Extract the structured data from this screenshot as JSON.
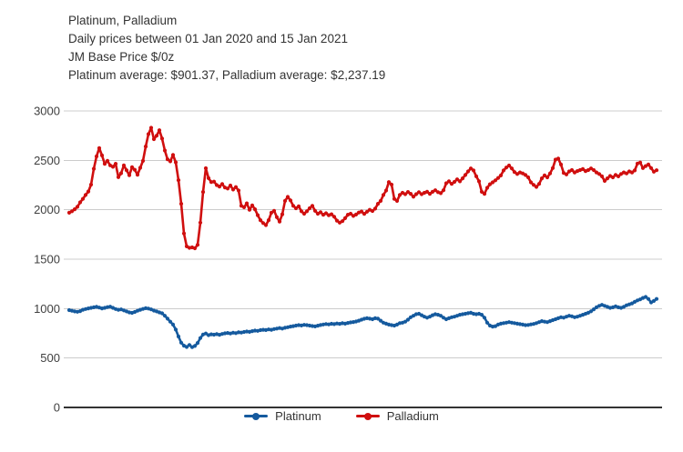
{
  "header": {
    "line1": "Platinum, Palladium",
    "line2": "Daily prices between 01 Jan 2020 and 15 Jan 2021",
    "line3": "JM Base Price $/0z",
    "line4": "Platinum average: $901.37, Palladium average: $2,237.19"
  },
  "colors": {
    "platinum": "#155a9e",
    "palladium": "#d00f0f",
    "grid": "#cccccc",
    "axis": "#333333",
    "text": "#333333"
  },
  "chart_data": {
    "type": "line",
    "title": "Platinum, Palladium",
    "subtitle": "Daily prices between 01 Jan 2020 and 15 Jan 2021",
    "units_label": "JM Base Price $/0z",
    "averages_label": "Platinum average: $901.37, Palladium average: $2,237.19",
    "averages": {
      "Platinum": 901.37,
      "Palladium": 2237.19
    },
    "x_range": [
      "01 Jan 2020",
      "15 Jan 2021"
    ],
    "x_axis_labels": "none",
    "ylim": [
      0,
      3000
    ],
    "yticks": [
      0,
      500,
      1000,
      1500,
      2000,
      2500,
      3000
    ],
    "grid": "horizontal",
    "legend_position": "bottom-center",
    "marker": "circle",
    "series": [
      {
        "name": "Platinum",
        "color": "#155a9e",
        "values": [
          985,
          978,
          972,
          968,
          975,
          988,
          996,
          1002,
          1008,
          1013,
          1018,
          1010,
          1002,
          1008,
          1015,
          1020,
          1008,
          996,
          988,
          992,
          982,
          972,
          962,
          957,
          966,
          978,
          988,
          997,
          1004,
          1000,
          992,
          980,
          972,
          962,
          952,
          928,
          898,
          868,
          838,
          788,
          718,
          655,
          625,
          612,
          632,
          610,
          622,
          652,
          702,
          738,
          748,
          732,
          740,
          736,
          742,
          735,
          744,
          750,
          754,
          748,
          756,
          752,
          760,
          757,
          764,
          768,
          765,
          772,
          778,
          775,
          782,
          786,
          783,
          790,
          786,
          793,
          798,
          803,
          798,
          806,
          812,
          818,
          823,
          828,
          833,
          829,
          836,
          833,
          828,
          824,
          820,
          827,
          834,
          839,
          844,
          840,
          847,
          843,
          849,
          846,
          852,
          848,
          855,
          860,
          864,
          870,
          878,
          888,
          897,
          903,
          898,
          893,
          903,
          898,
          878,
          858,
          848,
          838,
          833,
          828,
          838,
          853,
          858,
          868,
          888,
          913,
          928,
          943,
          948,
          933,
          918,
          908,
          918,
          933,
          943,
          938,
          928,
          908,
          893,
          903,
          913,
          918,
          928,
          938,
          943,
          948,
          953,
          958,
          948,
          943,
          948,
          938,
          908,
          858,
          828,
          818,
          823,
          838,
          848,
          853,
          858,
          863,
          858,
          853,
          848,
          843,
          838,
          833,
          835,
          840,
          845,
          853,
          863,
          873,
          868,
          863,
          873,
          883,
          893,
          903,
          913,
          908,
          918,
          928,
          922,
          913,
          918,
          928,
          938,
          948,
          958,
          973,
          993,
          1013,
          1028,
          1038,
          1028,
          1018,
          1008,
          1013,
          1023,
          1013,
          1008,
          1018,
          1033,
          1043,
          1053,
          1068,
          1083,
          1093,
          1108,
          1118,
          1098,
          1063,
          1078,
          1098
        ]
      },
      {
        "name": "Palladium",
        "color": "#d00f0f",
        "values": [
          1970,
          1985,
          2005,
          2030,
          2075,
          2110,
          2150,
          2185,
          2255,
          2415,
          2540,
          2625,
          2550,
          2465,
          2495,
          2450,
          2435,
          2465,
          2330,
          2370,
          2450,
          2400,
          2350,
          2430,
          2405,
          2355,
          2425,
          2495,
          2640,
          2765,
          2830,
          2715,
          2750,
          2805,
          2720,
          2600,
          2510,
          2490,
          2555,
          2480,
          2300,
          2060,
          1760,
          1630,
          1615,
          1620,
          1610,
          1645,
          1870,
          2180,
          2420,
          2320,
          2280,
          2285,
          2250,
          2235,
          2260,
          2225,
          2215,
          2245,
          2205,
          2230,
          2195,
          2040,
          2025,
          2065,
          2000,
          2045,
          2005,
          1945,
          1895,
          1865,
          1845,
          1895,
          1970,
          1990,
          1925,
          1880,
          1955,
          2090,
          2130,
          2095,
          2040,
          2015,
          2035,
          1985,
          1960,
          1985,
          2015,
          2040,
          1990,
          1960,
          1975,
          1950,
          1965,
          1945,
          1955,
          1930,
          1890,
          1870,
          1885,
          1915,
          1950,
          1960,
          1938,
          1952,
          1972,
          1982,
          1958,
          1980,
          2000,
          1988,
          2012,
          2060,
          2090,
          2150,
          2195,
          2280,
          2255,
          2110,
          2090,
          2150,
          2172,
          2158,
          2180,
          2162,
          2132,
          2158,
          2178,
          2158,
          2172,
          2182,
          2162,
          2182,
          2198,
          2178,
          2168,
          2198,
          2268,
          2288,
          2262,
          2282,
          2308,
          2288,
          2318,
          2352,
          2388,
          2418,
          2398,
          2338,
          2288,
          2182,
          2162,
          2222,
          2258,
          2278,
          2298,
          2322,
          2348,
          2398,
          2428,
          2448,
          2418,
          2382,
          2362,
          2378,
          2368,
          2352,
          2328,
          2278,
          2252,
          2232,
          2262,
          2318,
          2348,
          2328,
          2368,
          2422,
          2508,
          2518,
          2458,
          2372,
          2358,
          2388,
          2402,
          2378,
          2392,
          2402,
          2412,
          2392,
          2402,
          2418,
          2402,
          2378,
          2362,
          2338,
          2292,
          2318,
          2342,
          2328,
          2352,
          2338,
          2362,
          2378,
          2368,
          2388,
          2378,
          2398,
          2468,
          2478,
          2422,
          2442,
          2458,
          2422,
          2385,
          2400
        ]
      }
    ]
  }
}
